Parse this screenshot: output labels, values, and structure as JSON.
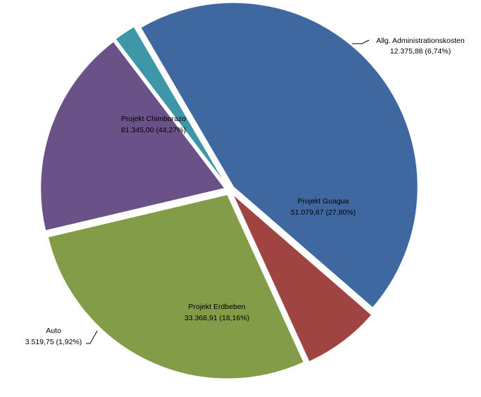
{
  "chart_data": {
    "type": "pie",
    "slices": [
      {
        "name": "Projekt Chimborazo",
        "value_label": "81.345,00  (44,27%)",
        "value": 81345.0,
        "percent": 44.27,
        "color": "#4068A0"
      },
      {
        "name": "Allg. Administrationskosten",
        "value_label": "12.375,88  (6,74%)",
        "value": 12375.88,
        "percent": 6.74,
        "color": "#A04442"
      },
      {
        "name": "Projekt Guagua",
        "value_label": "51.079,67  (27,80%)",
        "value": 51079.67,
        "percent": 27.8,
        "color": "#839C48"
      },
      {
        "name": "Projekt Erdbeben",
        "value_label": "33.368,91 (18,16%)",
        "value": 33368.91,
        "percent": 18.16,
        "color": "#6A5288"
      },
      {
        "name": "Auto",
        "value_label": "3.519,75 (1,92%)",
        "value": 3519.75,
        "percent": 1.92,
        "color": "#3D97A6"
      }
    ]
  }
}
